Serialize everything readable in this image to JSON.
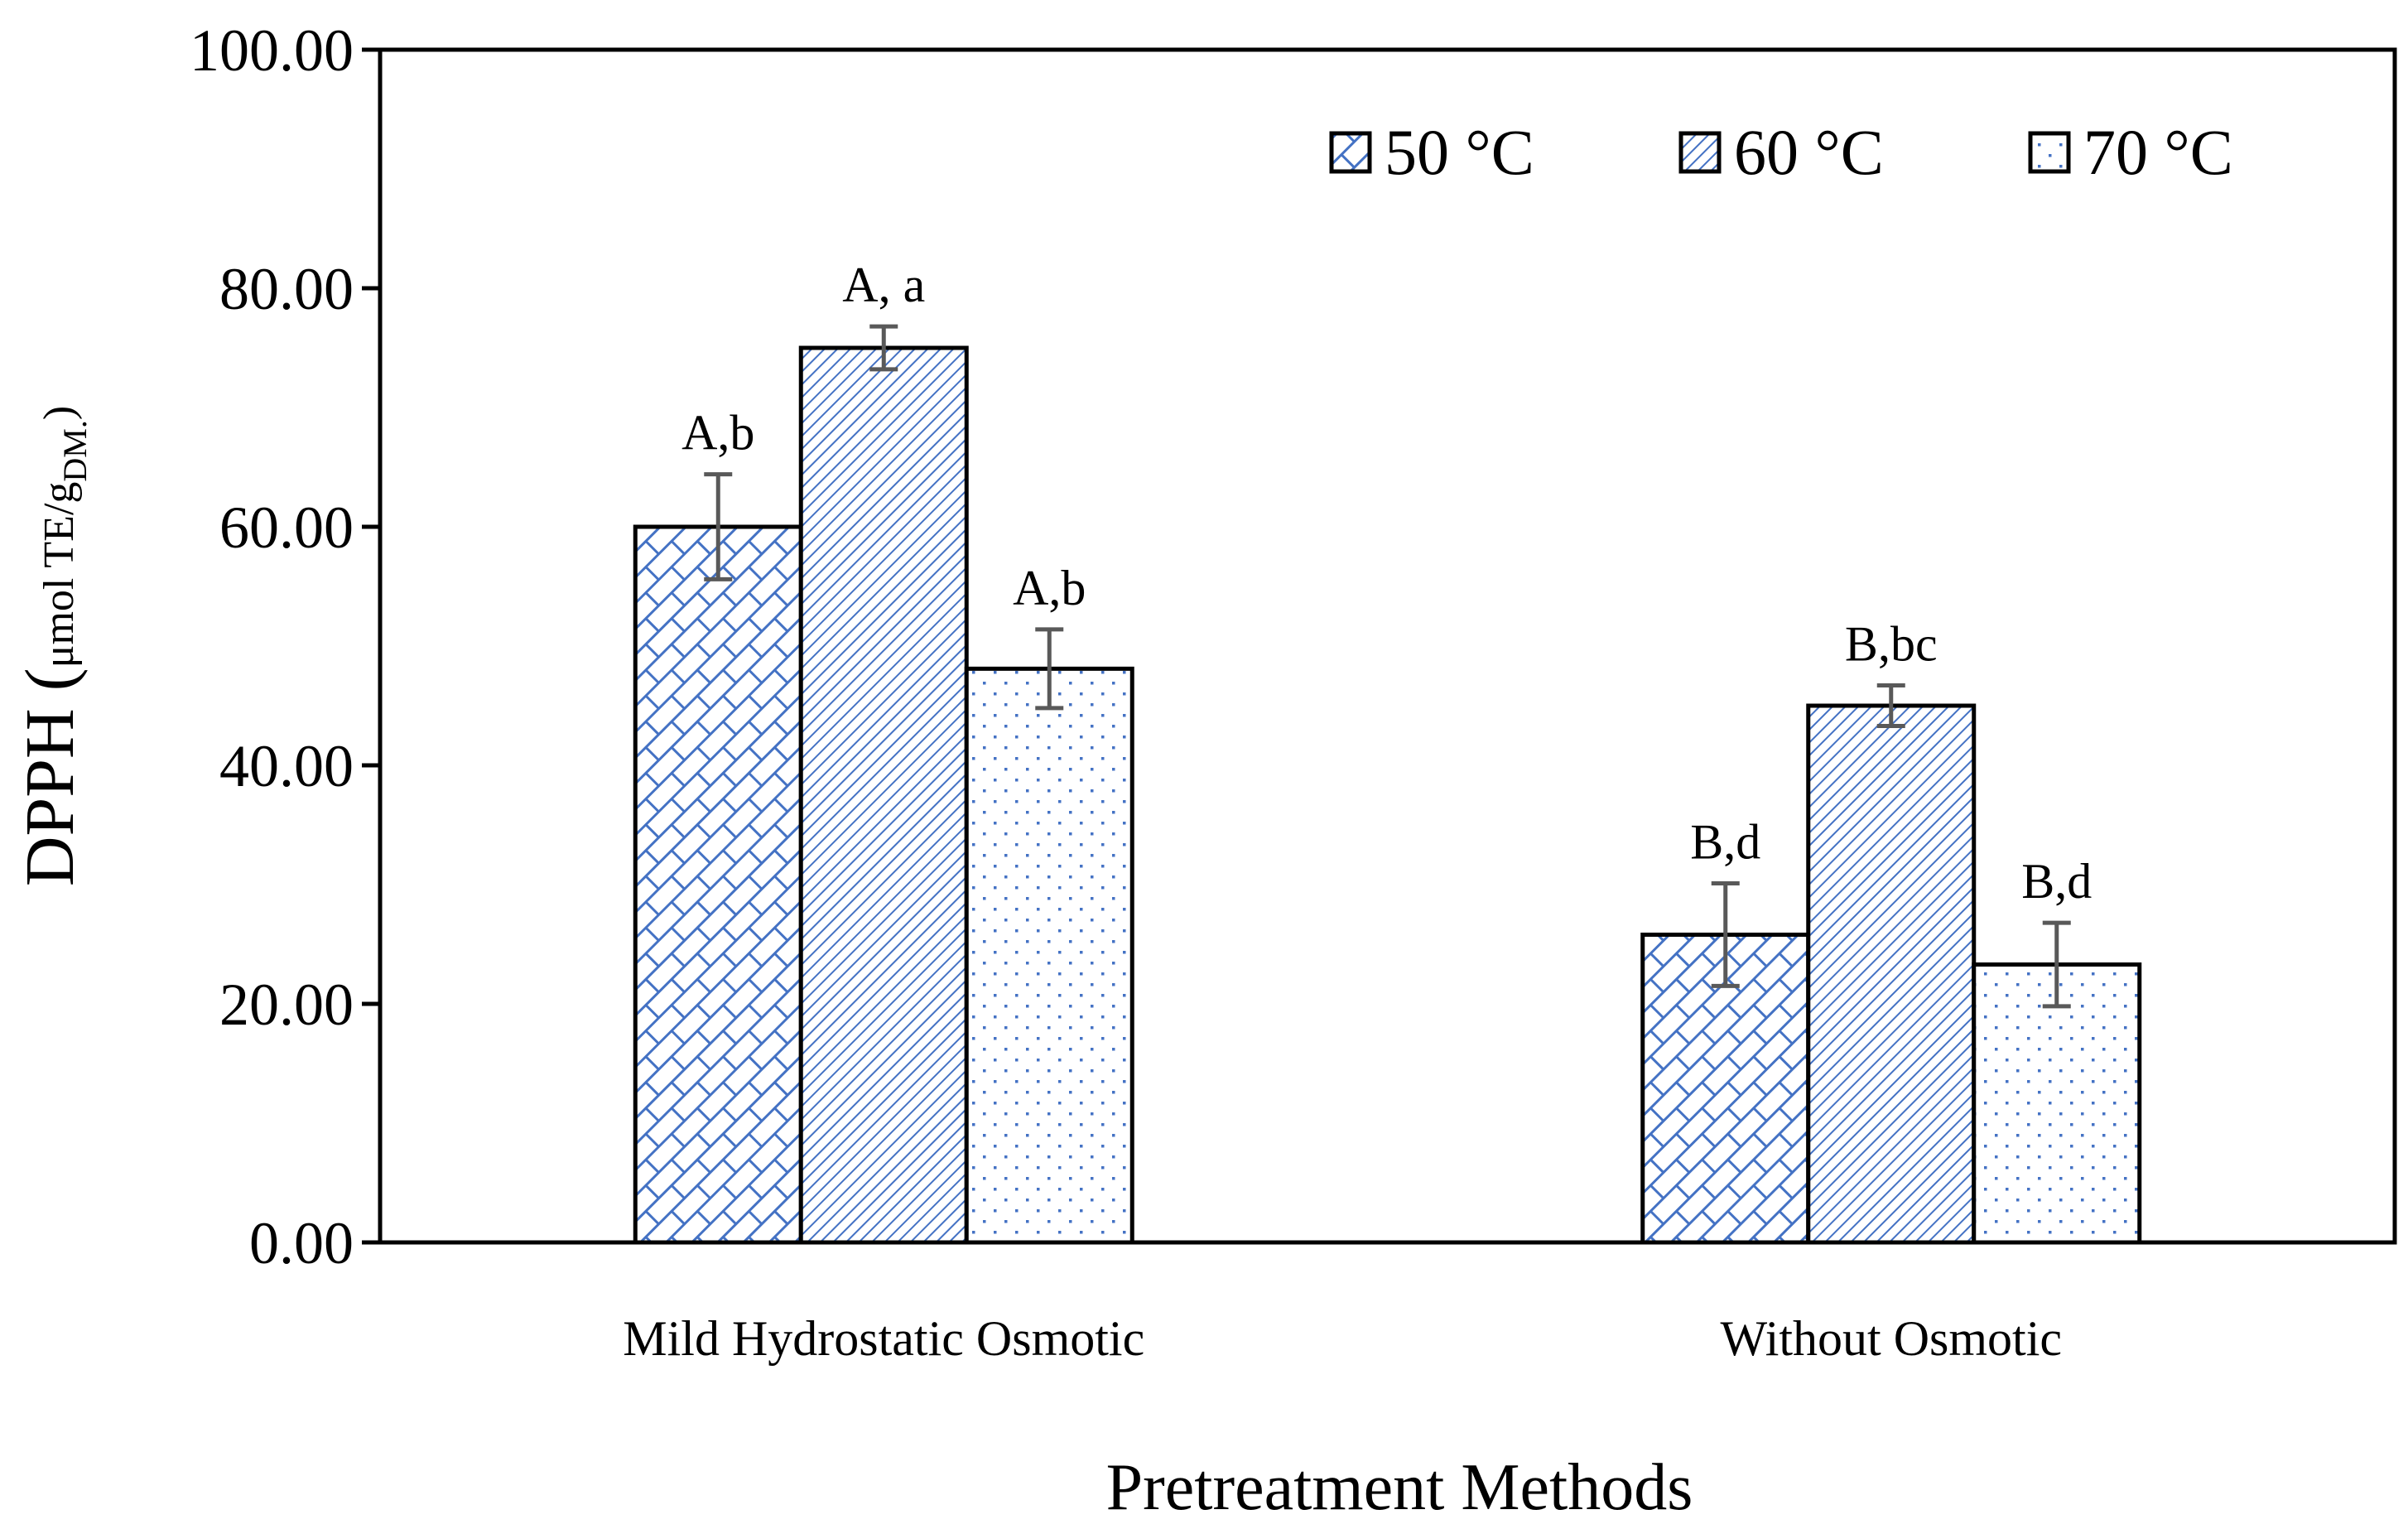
{
  "chart_data": {
    "type": "bar",
    "categories": [
      "Mild Hydrostatic Osmotic",
      "Without Osmotic"
    ],
    "series": [
      {
        "name": "50 °C",
        "values": [
          60.0,
          25.8
        ],
        "errors": [
          4.4,
          4.3
        ],
        "labels": [
          "A,b",
          "B,d"
        ],
        "pattern": "brick",
        "color": "#4472c4"
      },
      {
        "name": "60 °C",
        "values": [
          75.0,
          45.0
        ],
        "errors": [
          1.8,
          1.7
        ],
        "labels": [
          "A, a",
          "B,bc"
        ],
        "pattern": "diagonal",
        "color": "#4472c4"
      },
      {
        "name": "70 °C",
        "values": [
          48.1,
          23.3
        ],
        "errors": [
          3.3,
          3.5
        ],
        "labels": [
          "A,b",
          "B,d"
        ],
        "pattern": "dots",
        "color": "#4472c4"
      }
    ],
    "title": "",
    "xlabel": "Pretreatment  Methods",
    "ylabel": {
      "main": "DPPH (",
      "unit": "μmol TE/g",
      "subscript": "DM.",
      "close": ")"
    },
    "ylim": [
      0,
      100
    ],
    "yticks": [
      "0.00",
      "20.00",
      "40.00",
      "60.00",
      "80.00",
      "100.00"
    ],
    "grid": false,
    "legend_position": "top-right"
  }
}
